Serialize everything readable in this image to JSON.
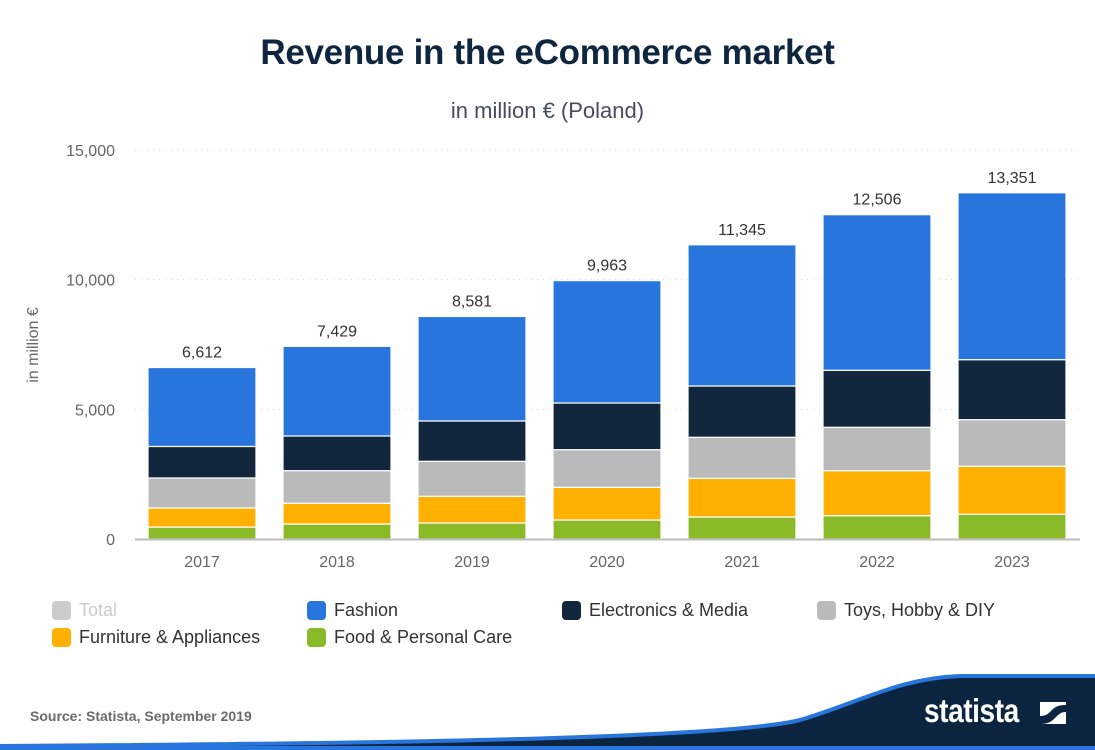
{
  "header": {
    "title": "Revenue in the eCommerce market",
    "subtitle": "in million € (Poland)"
  },
  "chart_data": {
    "type": "bar",
    "stacked": true,
    "title": "Revenue in the eCommerce market",
    "subtitle": "in million € (Poland)",
    "xlabel": "",
    "ylabel": "in million €",
    "ylim": [
      0,
      15000
    ],
    "yticks": [
      0,
      5000,
      10000,
      15000
    ],
    "ytick_labels": [
      "0",
      "5,000",
      "10,000",
      "15,000"
    ],
    "grid": true,
    "legend_position": "bottom",
    "categories": [
      "2017",
      "2018",
      "2019",
      "2020",
      "2021",
      "2022",
      "2023"
    ],
    "totals": [
      6612,
      7429,
      8581,
      9963,
      11345,
      12506,
      13351
    ],
    "total_labels": [
      "6,612",
      "7,429",
      "8,581",
      "9,963",
      "11,345",
      "12,506",
      "13,351"
    ],
    "series": [
      {
        "name": "Food & Personal Care",
        "color": "#8aba27",
        "values": [
          460,
          578,
          617,
          733,
          848,
          899,
          953
        ]
      },
      {
        "name": "Furniture & Appliances",
        "color": "#ffb000",
        "values": [
          736,
          800,
          1030,
          1261,
          1493,
          1735,
          1851
        ]
      },
      {
        "name": "Toys, Hobby & DIY",
        "color": "#bababa",
        "values": [
          1157,
          1257,
          1350,
          1450,
          1581,
          1674,
          1797
        ]
      },
      {
        "name": "Electronics & Media",
        "color": "#12273d",
        "values": [
          1215,
          1338,
          1554,
          1801,
          1978,
          2198,
          2314
        ]
      },
      {
        "name": "Fashion",
        "color": "#2876dd",
        "values": [
          3044,
          3456,
          4030,
          4718,
          5445,
          6000,
          6436
        ]
      }
    ]
  },
  "legend": {
    "items": [
      {
        "label": "Total",
        "color": "#cccccc",
        "muted": true
      },
      {
        "label": "Fashion",
        "color": "#2876dd"
      },
      {
        "label": "Electronics & Media",
        "color": "#12273d"
      },
      {
        "label": "Toys, Hobby & DIY",
        "color": "#bababa"
      },
      {
        "label": "Furniture & Appliances",
        "color": "#ffb000"
      },
      {
        "label": "Food & Personal Care",
        "color": "#8aba27"
      }
    ]
  },
  "footer": {
    "source": "Source: Statista, September 2019",
    "brand": "statista",
    "brand_navy": "#0b2540",
    "brand_blue": "#2876dd"
  }
}
